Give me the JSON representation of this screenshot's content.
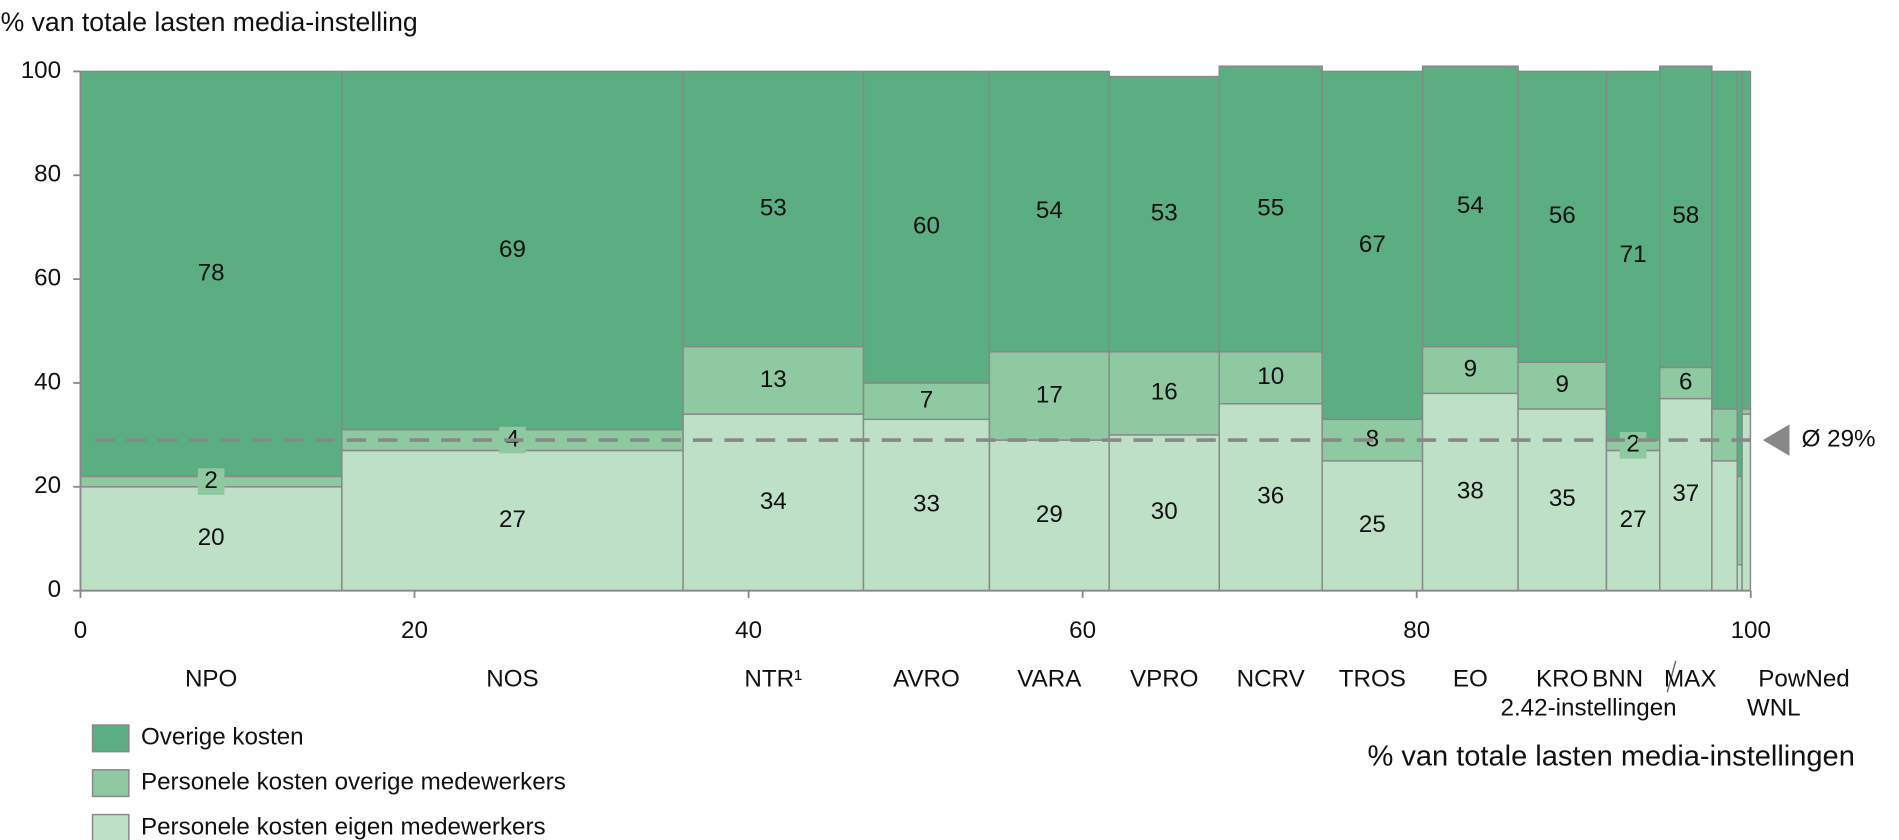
{
  "chart_data": {
    "type": "marimekko",
    "ylabel": "% van totale lasten media-instelling",
    "xlabel": "% van totale lasten media-instellingen",
    "categories": [
      "NPO",
      "NOS",
      "NTR¹",
      "AVRO",
      "VARA",
      "VPRO",
      "NCRV",
      "TROS",
      "EO",
      "KRO",
      "BNN",
      "MAX",
      "WNL",
      "PowNed",
      "2.42-instellingen"
    ],
    "widths": [
      15.65,
      20.43,
      10.8,
      7.54,
      7.17,
      6.59,
      6.16,
      6.01,
      5.72,
      5.29,
      3.19,
      3.12,
      1.52,
      0.29,
      0.5
    ],
    "series": [
      {
        "name": "Personele kosten eigen medewerkers",
        "color": "#bde0c6",
        "values": [
          20,
          27,
          34,
          33,
          29,
          30,
          36,
          25,
          38,
          35,
          27,
          37,
          25,
          5,
          34
        ]
      },
      {
        "name": "Personele kosten overige medewerkers",
        "color": "#8ec9a1",
        "values": [
          2,
          4,
          13,
          7,
          17,
          16,
          10,
          8,
          9,
          9,
          2,
          6,
          10,
          17,
          1
        ]
      },
      {
        "name": "Overige kosten",
        "color": "#5aae82",
        "values": [
          78,
          69,
          53,
          60,
          54,
          53,
          55,
          67,
          54,
          56,
          71,
          58,
          65,
          78,
          65
        ]
      }
    ],
    "average": {
      "value": 29,
      "label": "Ø 29%"
    },
    "xlim": [
      0,
      100
    ],
    "xticks": [
      0,
      20,
      40,
      60,
      80,
      100
    ],
    "ylim": [
      0,
      100
    ],
    "yticks": [
      0,
      20,
      40,
      60,
      80,
      100
    ]
  }
}
